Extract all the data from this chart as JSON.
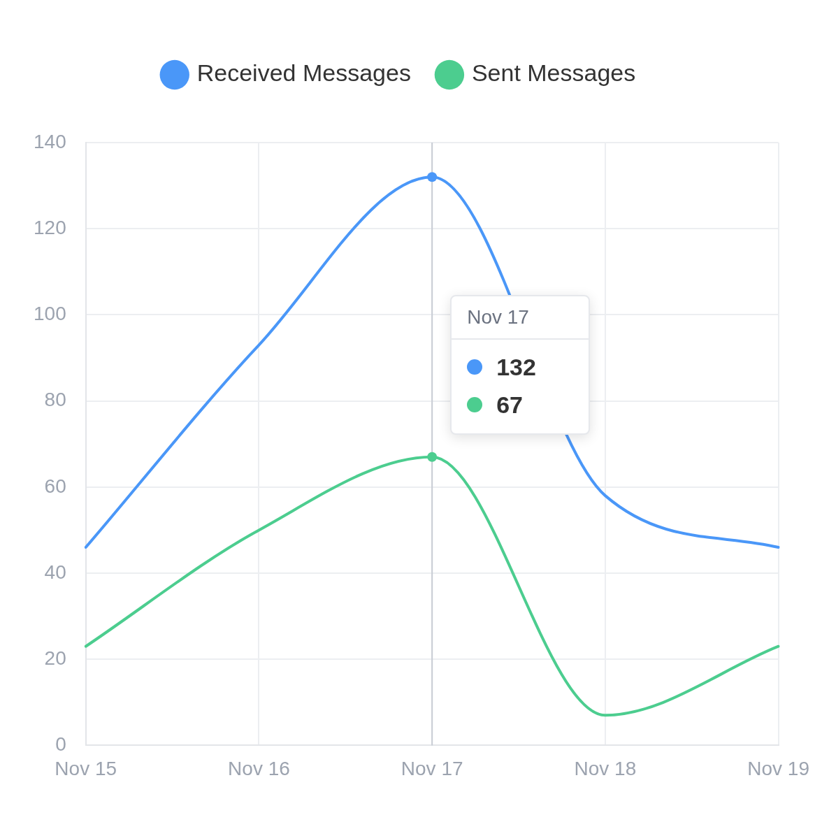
{
  "chart_data": {
    "type": "line",
    "categories": [
      "Nov 15",
      "Nov 16",
      "Nov 17",
      "Nov 18",
      "Nov 19"
    ],
    "series": [
      {
        "name": "Received Messages",
        "color": "#4a97f8",
        "values": [
          46,
          93,
          132,
          58,
          46
        ]
      },
      {
        "name": "Sent Messages",
        "color": "#4ccd8f",
        "values": [
          23,
          50,
          67,
          7,
          23
        ]
      }
    ],
    "annotations": [
      "132",
      "67"
    ],
    "ylim": [
      0,
      140
    ],
    "yticks": [
      0,
      20,
      40,
      60,
      80,
      100,
      120,
      140
    ],
    "grid": true,
    "legend": "top",
    "marker": "none",
    "line_style": "solid",
    "ref_lines": [
      {
        "axis": "x",
        "value": "Nov 17",
        "color": "#c8ccd4"
      }
    ]
  }
}
